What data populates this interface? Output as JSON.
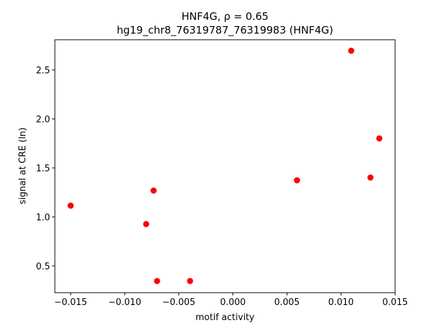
{
  "chart_data": {
    "type": "scatter",
    "title": "HNF4G, ρ = 0.65",
    "subtitle": "hg19_chr8_76319787_76319983 (HNF4G)",
    "x_label": "motif activity",
    "y_label": "signal at CRE (ln)",
    "color": "#ff0000",
    "x": [
      -0.015,
      -0.00802,
      -0.00733,
      -0.00701,
      -0.00396,
      0.00593,
      0.01094,
      0.01272,
      0.01354
    ],
    "values": [
      1.115,
      0.927,
      1.269,
      0.346,
      0.346,
      1.374,
      2.696,
      1.402,
      1.801
    ],
    "xlim": [
      -0.01646,
      0.015
    ],
    "ylim": [
      0.227,
      2.808
    ],
    "xticks": [
      {
        "value": -0.015,
        "label": "−0.015"
      },
      {
        "value": -0.01,
        "label": "−0.010"
      },
      {
        "value": -0.005,
        "label": "−0.005"
      },
      {
        "value": 0,
        "label": "0.000"
      },
      0.005,
      {
        "value": 0.01,
        "label": "0.010"
      },
      0.015
    ],
    "yticks": [
      0.5,
      {
        "value": 1,
        "label": "1.0"
      },
      1.5,
      {
        "value": 2,
        "label": "2.0"
      },
      2.5
    ],
    "grid": false
  }
}
